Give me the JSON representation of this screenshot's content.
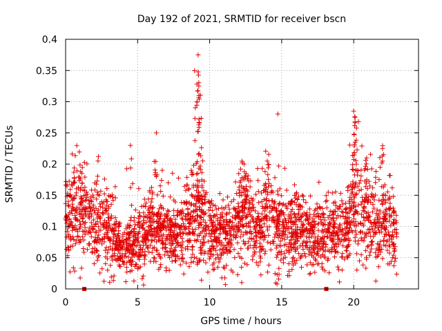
{
  "chart_data": {
    "type": "scatter",
    "title": "Day 192 of 2021, SRMTID for receiver bscn",
    "xlabel": "GPS time / hours",
    "ylabel": "SRMTID / TECUs",
    "xlim": [
      0,
      24.5
    ],
    "ylim": [
      0,
      0.4
    ],
    "x_ticks": [
      0,
      5,
      10,
      15,
      20
    ],
    "x_tick_labels": [
      "0",
      "5",
      "10",
      "15",
      "20"
    ],
    "y_ticks": [
      0,
      0.05,
      0.1,
      0.15,
      0.2,
      0.25,
      0.3,
      0.35,
      0.4
    ],
    "y_tick_labels": [
      "0",
      "0.05",
      "0.1",
      "0.15",
      "0.2",
      "0.25",
      "0.3",
      "0.35",
      "0.4"
    ],
    "grid": true,
    "marker": "+",
    "color": "#e00000",
    "series": [
      {
        "name": "SRMTID",
        "envelope_x": [
          0,
          0.5,
          1,
          1.5,
          2,
          2.5,
          3,
          3.5,
          4,
          4.5,
          5,
          5.5,
          6,
          6.5,
          7,
          7.5,
          8,
          8.5,
          9,
          9.5,
          10,
          10.5,
          11,
          11.5,
          12,
          12.5,
          13,
          13.5,
          14,
          14.5,
          15,
          15.5,
          16,
          16.5,
          17,
          17.5,
          18,
          18.5,
          19,
          19.5,
          20,
          20.5,
          21,
          21.5,
          22,
          22.5,
          23
        ],
        "envelope_y": [
          0.11,
          0.12,
          0.12,
          0.11,
          0.1,
          0.11,
          0.085,
          0.075,
          0.07,
          0.065,
          0.07,
          0.085,
          0.1,
          0.095,
          0.085,
          0.08,
          0.085,
          0.1,
          0.12,
          0.11,
          0.085,
          0.08,
          0.085,
          0.09,
          0.11,
          0.12,
          0.1,
          0.095,
          0.12,
          0.11,
          0.095,
          0.09,
          0.095,
          0.09,
          0.085,
          0.08,
          0.085,
          0.09,
          0.085,
          0.09,
          0.13,
          0.13,
          0.11,
          0.1,
          0.11,
          0.095,
          0.085
        ],
        "peaks": [
          {
            "x": 4.5,
            "y": 0.23
          },
          {
            "x": 6.3,
            "y": 0.25
          },
          {
            "x": 9.2,
            "y": 0.375
          },
          {
            "x": 9.2,
            "y": 0.348
          },
          {
            "x": 9.25,
            "y": 0.325
          },
          {
            "x": 9.25,
            "y": 0.263
          },
          {
            "x": 12.4,
            "y": 0.2
          },
          {
            "x": 14.0,
            "y": 0.205
          },
          {
            "x": 20.0,
            "y": 0.285
          },
          {
            "x": 20.1,
            "y": 0.275
          },
          {
            "x": 20.9,
            "y": 0.21
          },
          {
            "x": 22.0,
            "y": 0.225
          }
        ]
      }
    ],
    "baseline_markers": [
      1.3,
      18.1
    ]
  }
}
